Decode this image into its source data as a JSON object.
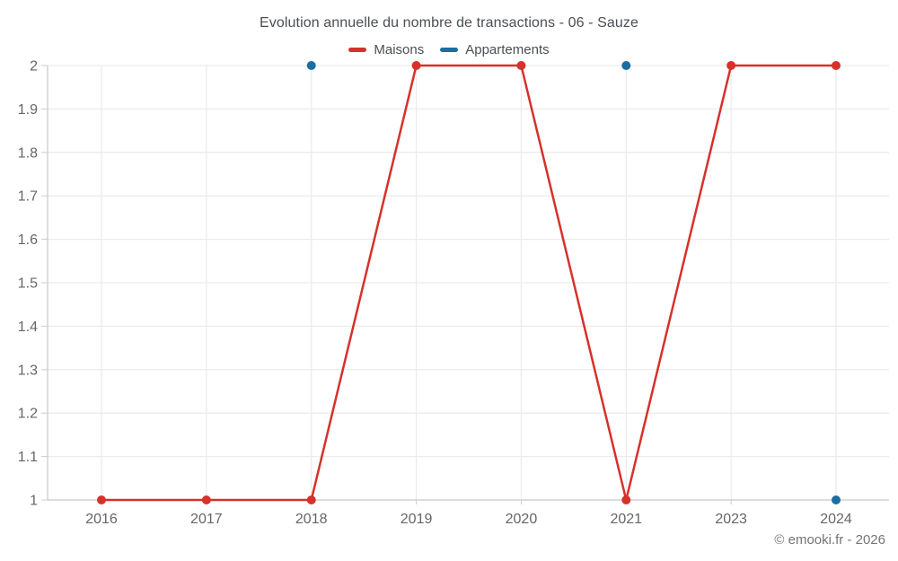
{
  "title": "Evolution annuelle du nombre de transactions - 06 - Sauze",
  "footer": "© emooki.fr - 2026",
  "colors": {
    "maisons": "#d6312b",
    "appartements": "#1b6ea4",
    "gridline": "#ececec",
    "axis": "#cccccc",
    "tick_text": "#666666",
    "title_text": "#4a4f54"
  },
  "chart_data": {
    "type": "line",
    "title": "Evolution annuelle du nombre de transactions - 06 - Sauze",
    "categories": [
      "2016",
      "2017",
      "2018",
      "2019",
      "2020",
      "2021",
      "2023",
      "2024"
    ],
    "series": [
      {
        "name": "Maisons",
        "color": "#d6312b",
        "connected": true,
        "values": [
          1,
          1,
          1,
          2,
          2,
          1,
          2,
          2
        ]
      },
      {
        "name": "Appartements",
        "color": "#1b6ea4",
        "connected": false,
        "values": [
          null,
          null,
          2,
          null,
          null,
          2,
          null,
          1
        ]
      }
    ],
    "xlabel": "",
    "ylabel": "",
    "ylim": [
      1,
      2
    ],
    "yticks": [
      1,
      1.1,
      1.2,
      1.3,
      1.4,
      1.5,
      1.6,
      1.7,
      1.8,
      1.9,
      2
    ],
    "ytick_labels": [
      "1",
      "1.1",
      "1.2",
      "1.3",
      "1.4",
      "1.5",
      "1.6",
      "1.7",
      "1.8",
      "1.9",
      "2"
    ],
    "grid": true,
    "legend_position": "top"
  }
}
